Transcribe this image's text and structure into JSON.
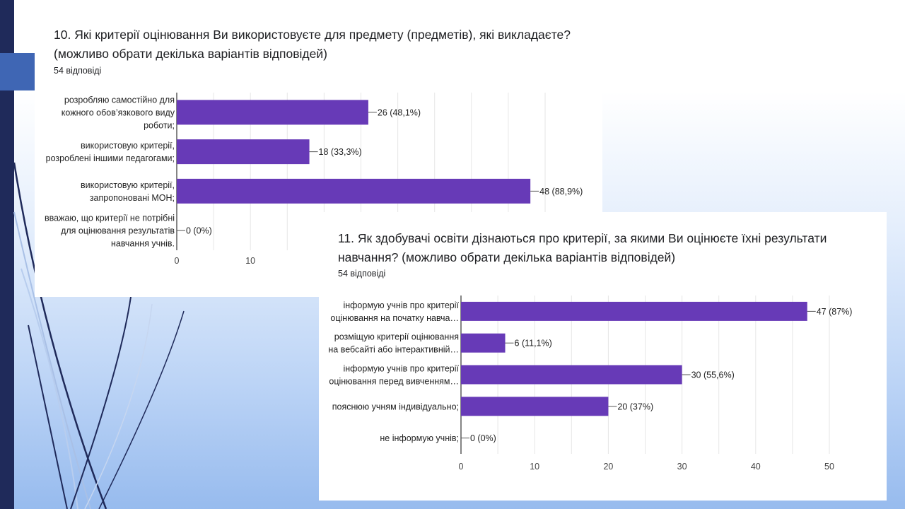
{
  "chart_data": [
    {
      "type": "bar",
      "orientation": "horizontal",
      "title": "10. Які критерії оцінювання Ви використовуєте для предмету (предметів), які викладаєте?",
      "title_line2": "(можливо обрати декілька варіантів відповідей)",
      "subtitle": "54 відповіді",
      "categories": [
        [
          "розробляю самостійно для",
          "кожного обов’язкового виду",
          "роботи;"
        ],
        [
          "використовую критерії,",
          "розроблені іншими педагогами;"
        ],
        [
          "використовую критерії,",
          "запропоновані МОН;"
        ],
        [
          "вважаю, що критерії не потрібні",
          "для оцінювання результатів",
          "навчання учнів."
        ]
      ],
      "values": [
        26,
        18,
        48,
        0
      ],
      "data_labels": [
        "26 (48,1%)",
        "18 (33,3%)",
        "48 (88,9%)",
        "0 (0%)"
      ],
      "xlim": [
        0,
        50
      ],
      "xticks": [
        "0",
        "10"
      ],
      "xtick_values": [
        0,
        10
      ],
      "grid": true,
      "bar_color": "#673ab7"
    },
    {
      "type": "bar",
      "orientation": "horizontal",
      "title": "11. Як здобувачі освіти дізнаються про критерії, за якими Ви оцінюєте їхні результати",
      "title_line2": "навчання? (можливо обрати декілька варіантів відповідей)",
      "subtitle": "54 відповіді",
      "categories": [
        [
          "інформую учнів про критерії",
          "оцінювання на початку навча…"
        ],
        [
          "розміщую критерії оцінювання",
          "на вебсайті або інтерактивній…"
        ],
        [
          "інформую учнів про критерії",
          "оцінювання перед вивченням…"
        ],
        [
          "пояснюю учням індивідуально;"
        ],
        [
          "не інформую учнів;"
        ]
      ],
      "values": [
        47,
        6,
        30,
        20,
        0
      ],
      "data_labels": [
        "47 (87%)",
        "6 (11,1%)",
        "30 (55,6%)",
        "20 (37%)",
        "0 (0%)"
      ],
      "xlim": [
        0,
        50
      ],
      "xticks": [
        "0",
        "10",
        "20",
        "30",
        "40",
        "50"
      ],
      "xtick_values": [
        0,
        10,
        20,
        30,
        40,
        50
      ],
      "grid": true,
      "bar_color": "#673ab7"
    }
  ]
}
